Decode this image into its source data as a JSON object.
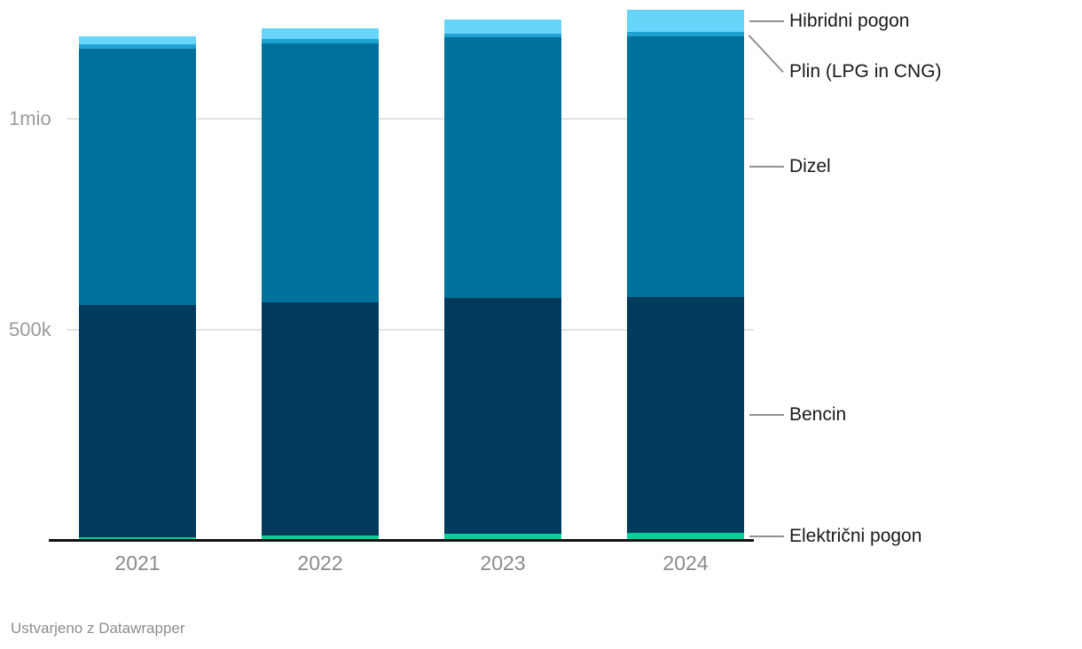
{
  "chart_data": {
    "type": "bar",
    "stacked": true,
    "categories": [
      "2021",
      "2022",
      "2023",
      "2024"
    ],
    "series": [
      {
        "name": "Električni pogon",
        "color": "#00d29a",
        "values": [
          8000,
          12000,
          16000,
          19000
        ]
      },
      {
        "name": "Bencin",
        "color": "#003a5c",
        "values": [
          551000,
          553000,
          559000,
          559000
        ]
      },
      {
        "name": "Dizel",
        "color": "#00719a",
        "values": [
          606000,
          614000,
          618000,
          618000
        ]
      },
      {
        "name": "Plin (LPG in CNG)",
        "color": "#1ea2d3",
        "values": [
          11000,
          9500,
          8500,
          10000
        ]
      },
      {
        "name": "Hibridni pogon",
        "color": "#67d4fa",
        "values": [
          19000,
          25000,
          34000,
          52000
        ]
      }
    ],
    "y_axis": {
      "ticks": [
        {
          "label": "500k",
          "value": 500000
        },
        {
          "label": "1mio",
          "value": 1000000
        }
      ],
      "ylim": [
        0,
        1282000
      ]
    },
    "grid": true,
    "legend_position": "right-annotations"
  },
  "footer": {
    "credit": "Ustvarjeno z Datawrapper"
  },
  "colors": {
    "background": "#ffffff",
    "grid": "#e3e3e3",
    "axis": "#111111",
    "tick_label": "#9b9b9b",
    "year_label": "#8a8a8a",
    "annotation_label": "#1a1a1a",
    "leader_line": "#939393"
  }
}
